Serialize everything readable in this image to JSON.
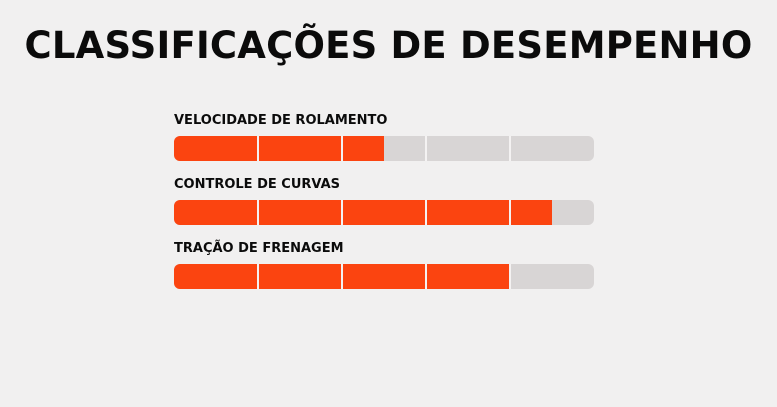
{
  "page": {
    "title": "CLASSIFICAÇÕES DE DESEMPENHO"
  },
  "colors": {
    "background": "#f1f0f0",
    "fill": "#fb4410",
    "track": "#d8d5d5",
    "divider": "#f4f2f2",
    "text": "#0b0b0b"
  },
  "scale_segments": 5,
  "ratings": [
    {
      "label": "VELOCIDADE DE ROLAMENTO",
      "value": 2.5
    },
    {
      "label": "CONTROLE DE CURVAS",
      "value": 4.5
    },
    {
      "label": "TRAÇÃO DE FRENAGEM",
      "value": 4.0
    }
  ]
}
